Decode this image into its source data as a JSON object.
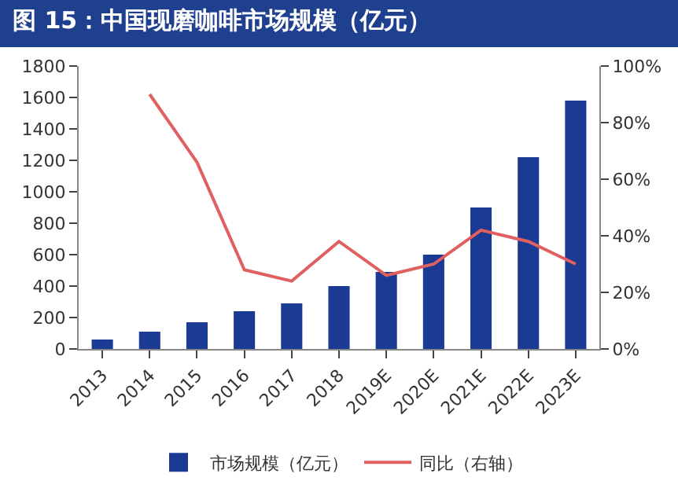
{
  "chart_data": {
    "type": "bar",
    "title": "图 15：中国现磨咖啡市场规模（亿元）",
    "categories": [
      "2013",
      "2014",
      "2015",
      "2016",
      "2017",
      "2018",
      "2019E",
      "2020E",
      "2021E",
      "2022E",
      "2023E"
    ],
    "series": [
      {
        "name": "市场规模（亿元）",
        "color": "#1a3a94",
        "values": [
          60,
          110,
          170,
          240,
          290,
          400,
          490,
          600,
          900,
          1220,
          1580
        ]
      },
      {
        "name": "同比（右轴）",
        "type": "line",
        "axis": "y2",
        "color": "#e06060",
        "values": [
          null,
          90,
          66,
          28,
          24,
          38,
          26,
          30,
          42,
          38,
          30
        ]
      }
    ],
    "ylim": [
      0,
      1800
    ],
    "yticks": [
      0,
      200,
      400,
      600,
      800,
      1000,
      1200,
      1400,
      1600,
      1800
    ],
    "y2lim": [
      0,
      100
    ],
    "y2ticks": [
      {
        "value": 0,
        "label": "0%"
      },
      {
        "value": 20,
        "label": "20%"
      },
      {
        "value": 40,
        "label": "40%"
      },
      {
        "value": 60,
        "label": "60%"
      },
      {
        "value": 80,
        "label": "80%"
      },
      {
        "value": 100,
        "label": "100%"
      }
    ],
    "grid": false,
    "legend": "bottom"
  }
}
